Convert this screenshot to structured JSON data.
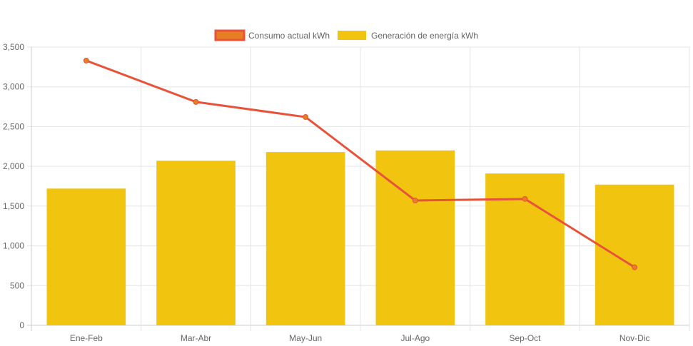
{
  "chart_data": {
    "type": "bar",
    "categories": [
      "Ene-Feb",
      "Mar-Abr",
      "May-Jun",
      "Jul-Ago",
      "Sep-Oct",
      "Nov-Dic"
    ],
    "series": [
      {
        "name": "Consumo actual kWh",
        "type": "line",
        "values": [
          3330,
          2810,
          2620,
          1570,
          1590,
          730
        ],
        "color": "#e8523a",
        "marker_color": "#e67e22"
      },
      {
        "name": "Generación de energía kWh",
        "type": "bar",
        "values": [
          1720,
          2070,
          2180,
          2200,
          1910,
          1770
        ],
        "color": "#f1c40f"
      }
    ],
    "y_ticks": [
      "0",
      "500",
      "1,000",
      "1,500",
      "2,000",
      "2,500",
      "3,000",
      "3,500"
    ],
    "ylim": [
      0,
      3500
    ],
    "title": "",
    "xlabel": "",
    "ylabel": "",
    "grid": true,
    "legend_position": "top-center"
  }
}
